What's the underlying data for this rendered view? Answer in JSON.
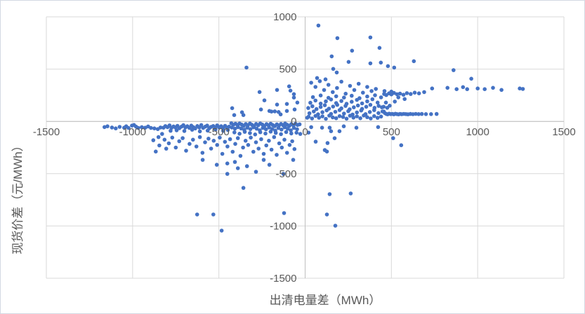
{
  "chart_title": "",
  "colors": {
    "marker": "#4472C4",
    "gridline": "#D9D9D9",
    "axis_line": "#BFBFBF",
    "text": "#595959",
    "background": "#FFFFFF"
  },
  "chart_data": {
    "type": "scatter",
    "title": "",
    "xlabel": "出清电量差（MWh）",
    "ylabel": "现货价差（元/MWh）",
    "xlim": [
      -1500,
      1500
    ],
    "ylim": [
      -1500,
      1000
    ],
    "x_ticks": [
      -1500,
      -1000,
      -500,
      0,
      500,
      1000,
      1500
    ],
    "y_ticks": [
      1000,
      500,
      0,
      -500,
      -1000,
      -1500
    ],
    "grid": true,
    "legend": false,
    "marker_color": "#4472C4",
    "points": [
      [
        -1163,
        -54
      ],
      [
        -1146,
        -47
      ],
      [
        -1120,
        -58
      ],
      [
        -1098,
        -67
      ],
      [
        -1075,
        -52
      ],
      [
        -1049,
        -60
      ],
      [
        -1037,
        -47
      ],
      [
        -1024,
        -62
      ],
      [
        -1004,
        -40
      ],
      [
        -992,
        -34
      ],
      [
        -980,
        -50
      ],
      [
        -967,
        -62
      ],
      [
        -947,
        -55
      ],
      [
        -927,
        -60
      ],
      [
        -910,
        -48
      ],
      [
        -894,
        -62
      ],
      [
        -874,
        -67
      ],
      [
        -854,
        -74
      ],
      [
        -838,
        -58
      ],
      [
        -829,
        -120
      ],
      [
        -821,
        -60
      ],
      [
        -810,
        -45
      ],
      [
        -798,
        -55
      ],
      [
        -786,
        -38
      ],
      [
        -775,
        -62
      ],
      [
        -763,
        -48
      ],
      [
        -752,
        -58
      ],
      [
        -740,
        -42
      ],
      [
        -729,
        -65
      ],
      [
        -717,
        -50
      ],
      [
        -706,
        -36
      ],
      [
        -694,
        -58
      ],
      [
        -683,
        -46
      ],
      [
        -671,
        -62
      ],
      [
        -660,
        -40
      ],
      [
        -648,
        -55
      ],
      [
        -637,
        -68
      ],
      [
        -625,
        -44
      ],
      [
        -614,
        -58
      ],
      [
        -602,
        -35
      ],
      [
        -591,
        -62
      ],
      [
        -579,
        -50
      ],
      [
        -568,
        -40
      ],
      [
        -556,
        -66
      ],
      [
        -545,
        -52
      ],
      [
        -533,
        -44
      ],
      [
        -522,
        -60
      ],
      [
        -510,
        -38
      ],
      [
        -499,
        -56
      ],
      [
        -487,
        -46
      ],
      [
        -476,
        -64
      ],
      [
        -464,
        -42
      ],
      [
        -453,
        -58
      ],
      [
        -441,
        -50
      ],
      [
        -780,
        -90
      ],
      [
        -745,
        -85
      ],
      [
        -700,
        -92
      ],
      [
        -655,
        -80
      ],
      [
        -610,
        -95
      ],
      [
        -565,
        -88
      ],
      [
        -520,
        -78
      ],
      [
        -475,
        -90
      ],
      [
        -448,
        -82
      ],
      [
        -805,
        -261
      ],
      [
        -866,
        -288
      ],
      [
        -428,
        -18
      ],
      [
        -416,
        -32
      ],
      [
        -404,
        -22
      ],
      [
        -392,
        -35
      ],
      [
        -380,
        -20
      ],
      [
        -368,
        -30
      ],
      [
        -356,
        -42
      ],
      [
        -344,
        -25
      ],
      [
        -332,
        -38
      ],
      [
        -320,
        -20
      ],
      [
        -308,
        -33
      ],
      [
        -296,
        -45
      ],
      [
        -284,
        -24
      ],
      [
        -272,
        -36
      ],
      [
        -260,
        -20
      ],
      [
        -248,
        -30
      ],
      [
        -236,
        -44
      ],
      [
        -224,
        -26
      ],
      [
        -212,
        -38
      ],
      [
        -200,
        -22
      ],
      [
        -188,
        -34
      ],
      [
        -176,
        -45
      ],
      [
        -164,
        -28
      ],
      [
        -152,
        -40
      ],
      [
        -140,
        -24
      ],
      [
        -128,
        -36
      ],
      [
        -116,
        -20
      ],
      [
        -104,
        -32
      ],
      [
        -92,
        -44
      ],
      [
        -80,
        -26
      ],
      [
        -68,
        -38
      ],
      [
        -56,
        -22
      ],
      [
        -44,
        -34
      ],
      [
        -32,
        -28
      ],
      [
        -425,
        -58
      ],
      [
        -407,
        -70
      ],
      [
        -389,
        -55
      ],
      [
        -371,
        -68
      ],
      [
        -353,
        -80
      ],
      [
        -335,
        -60
      ],
      [
        -317,
        -74
      ],
      [
        -299,
        -56
      ],
      [
        -281,
        -70
      ],
      [
        -263,
        -85
      ],
      [
        -245,
        -62
      ],
      [
        -227,
        -76
      ],
      [
        -209,
        -58
      ],
      [
        -191,
        -72
      ],
      [
        -173,
        -88
      ],
      [
        -155,
        -64
      ],
      [
        -137,
        -78
      ],
      [
        -119,
        -56
      ],
      [
        -101,
        -70
      ],
      [
        -83,
        -85
      ],
      [
        -65,
        -62
      ],
      [
        -47,
        -75
      ],
      [
        -410,
        -105
      ],
      [
        -380,
        -118
      ],
      [
        -350,
        -100
      ],
      [
        -320,
        -112
      ],
      [
        -290,
        -125
      ],
      [
        -260,
        -104
      ],
      [
        -230,
        -116
      ],
      [
        -200,
        -98
      ],
      [
        -170,
        -110
      ],
      [
        -140,
        -122
      ],
      [
        -110,
        -102
      ],
      [
        -80,
        -115
      ],
      [
        -50,
        -108
      ],
      [
        -28,
        -120
      ],
      [
        -880,
        -180
      ],
      [
        -850,
        -150
      ],
      [
        -845,
        -230
      ],
      [
        -815,
        -175
      ],
      [
        -790,
        -210
      ],
      [
        -770,
        -155
      ],
      [
        -750,
        -250
      ],
      [
        -730,
        -190
      ],
      [
        -710,
        -160
      ],
      [
        -690,
        -280
      ],
      [
        -670,
        -215
      ],
      [
        -650,
        -175
      ],
      [
        -630,
        -240
      ],
      [
        -610,
        -150
      ],
      [
        -595,
        -300
      ],
      [
        -580,
        -200
      ],
      [
        -560,
        -165
      ],
      [
        -545,
        -260
      ],
      [
        -530,
        -185
      ],
      [
        -510,
        -225
      ],
      [
        -495,
        -155
      ],
      [
        -480,
        -310
      ],
      [
        -465,
        -195
      ],
      [
        -450,
        -240
      ],
      [
        -435,
        -170
      ],
      [
        -420,
        -290
      ],
      [
        -405,
        -215
      ],
      [
        -390,
        -160
      ],
      [
        -375,
        -330
      ],
      [
        -360,
        -250
      ],
      [
        -345,
        -185
      ],
      [
        -330,
        -225
      ],
      [
        -315,
        -155
      ],
      [
        -300,
        -290
      ],
      [
        -285,
        -200
      ],
      [
        -270,
        -260
      ],
      [
        -255,
        -170
      ],
      [
        -240,
        -310
      ],
      [
        -225,
        -230
      ],
      [
        -210,
        -185
      ],
      [
        -195,
        -270
      ],
      [
        -180,
        -150
      ],
      [
        -165,
        -320
      ],
      [
        -150,
        -210
      ],
      [
        -135,
        -250
      ],
      [
        -120,
        -175
      ],
      [
        -105,
        -300
      ],
      [
        -90,
        -225
      ],
      [
        -75,
        -190
      ],
      [
        -62,
        -265
      ],
      [
        -594,
        -368
      ],
      [
        -512,
        -415
      ],
      [
        -451,
        -402
      ],
      [
        -407,
        -388
      ],
      [
        -390,
        -448
      ],
      [
        -337,
        -428
      ],
      [
        -285,
        -482
      ],
      [
        -240,
        -368
      ],
      [
        -207,
        -415
      ],
      [
        -126,
        -502
      ],
      [
        -451,
        -502
      ],
      [
        -358,
        -636
      ],
      [
        -69,
        -368
      ],
      [
        -626,
        -890
      ],
      [
        -532,
        -890
      ],
      [
        -484,
        -1044
      ],
      [
        -122,
        -877
      ],
      [
        -340,
        515
      ],
      [
        -423,
        127
      ],
      [
        -411,
        60
      ],
      [
        -366,
        87
      ],
      [
        -358,
        60
      ],
      [
        -264,
        281
      ],
      [
        -236,
        201
      ],
      [
        -256,
        114
      ],
      [
        -207,
        100
      ],
      [
        -195,
        94
      ],
      [
        -176,
        96
      ],
      [
        -163,
        161
      ],
      [
        -154,
        90
      ],
      [
        -142,
        67
      ],
      [
        -163,
        301
      ],
      [
        -106,
        167
      ],
      [
        -106,
        100
      ],
      [
        -93,
        335
      ],
      [
        -85,
        294
      ],
      [
        -65,
        261
      ],
      [
        -65,
        228
      ],
      [
        -61,
        114
      ],
      [
        -45,
        180
      ],
      [
        20,
        45
      ],
      [
        40,
        28
      ],
      [
        60,
        52
      ],
      [
        80,
        35
      ],
      [
        100,
        48
      ],
      [
        120,
        25
      ],
      [
        140,
        55
      ],
      [
        160,
        38
      ],
      [
        180,
        30
      ],
      [
        200,
        50
      ],
      [
        220,
        42
      ],
      [
        240,
        26
      ],
      [
        260,
        54
      ],
      [
        280,
        36
      ],
      [
        300,
        48
      ],
      [
        320,
        30
      ],
      [
        340,
        56
      ],
      [
        360,
        40
      ],
      [
        380,
        28
      ],
      [
        400,
        50
      ],
      [
        420,
        34
      ],
      [
        440,
        46
      ],
      [
        25,
        78
      ],
      [
        50,
        95
      ],
      [
        75,
        68
      ],
      [
        100,
        88
      ],
      [
        125,
        105
      ],
      [
        150,
        72
      ],
      [
        175,
        92
      ],
      [
        200,
        108
      ],
      [
        225,
        75
      ],
      [
        250,
        98
      ],
      [
        275,
        66
      ],
      [
        300,
        86
      ],
      [
        325,
        104
      ],
      [
        350,
        70
      ],
      [
        375,
        90
      ],
      [
        400,
        108
      ],
      [
        425,
        80
      ],
      [
        448,
        95
      ],
      [
        18,
        128
      ],
      [
        42,
        145
      ],
      [
        66,
        118
      ],
      [
        90,
        138
      ],
      [
        114,
        155
      ],
      [
        138,
        122
      ],
      [
        162,
        142
      ],
      [
        186,
        158
      ],
      [
        210,
        125
      ],
      [
        234,
        148
      ],
      [
        258,
        116
      ],
      [
        282,
        135
      ],
      [
        306,
        152
      ],
      [
        330,
        120
      ],
      [
        354,
        140
      ],
      [
        378,
        158
      ],
      [
        402,
        130
      ],
      [
        426,
        148
      ],
      [
        445,
        135
      ],
      [
        30,
        178
      ],
      [
        60,
        200
      ],
      [
        90,
        170
      ],
      [
        120,
        192
      ],
      [
        150,
        210
      ],
      [
        180,
        175
      ],
      [
        210,
        195
      ],
      [
        240,
        168
      ],
      [
        270,
        188
      ],
      [
        300,
        206
      ],
      [
        330,
        172
      ],
      [
        360,
        192
      ],
      [
        390,
        212
      ],
      [
        420,
        180
      ],
      [
        45,
        232
      ],
      [
        90,
        248
      ],
      [
        135,
        225
      ],
      [
        180,
        240
      ],
      [
        225,
        228
      ],
      [
        270,
        245
      ],
      [
        315,
        222
      ],
      [
        360,
        238
      ],
      [
        405,
        250
      ],
      [
        440,
        230
      ],
      [
        12,
        35
      ],
      [
        455,
        140
      ],
      [
        35,
        370
      ],
      [
        60,
        330
      ],
      [
        85,
        385
      ],
      [
        110,
        300
      ],
      [
        135,
        350
      ],
      [
        160,
        280
      ],
      [
        185,
        320
      ],
      [
        210,
        380
      ],
      [
        235,
        265
      ],
      [
        260,
        340
      ],
      [
        285,
        300
      ],
      [
        310,
        360
      ],
      [
        335,
        275
      ],
      [
        360,
        330
      ],
      [
        385,
        290
      ],
      [
        410,
        310
      ],
      [
        460,
        290
      ],
      [
        500,
        285
      ],
      [
        77,
        917
      ],
      [
        187,
        796
      ],
      [
        378,
        803
      ],
      [
        272,
        676
      ],
      [
        431,
        703
      ],
      [
        154,
        622
      ],
      [
        252,
        569
      ],
      [
        378,
        555
      ],
      [
        439,
        562
      ],
      [
        480,
        529
      ],
      [
        163,
        502
      ],
      [
        183,
        468
      ],
      [
        516,
        515
      ],
      [
        69,
        415
      ],
      [
        118,
        402
      ],
      [
        630,
        576
      ],
      [
        860,
        490
      ],
      [
        963,
        408
      ],
      [
        455,
        95
      ],
      [
        462,
        80
      ],
      [
        470,
        72
      ],
      [
        478,
        68
      ],
      [
        487,
        74
      ],
      [
        496,
        70
      ],
      [
        505,
        72
      ],
      [
        514,
        68
      ],
      [
        523,
        73
      ],
      [
        532,
        70
      ],
      [
        541,
        67
      ],
      [
        550,
        71
      ],
      [
        560,
        69
      ],
      [
        572,
        72
      ],
      [
        584,
        70
      ],
      [
        596,
        68
      ],
      [
        610,
        71
      ],
      [
        625,
        69
      ],
      [
        641,
        72
      ],
      [
        658,
        70
      ],
      [
        676,
        71
      ],
      [
        700,
        70
      ],
      [
        730,
        70
      ],
      [
        762,
        71
      ],
      [
        458,
        262
      ],
      [
        470,
        252
      ],
      [
        486,
        268
      ],
      [
        500,
        258
      ],
      [
        515,
        272
      ],
      [
        532,
        260
      ],
      [
        550,
        266
      ],
      [
        570,
        255
      ],
      [
        590,
        270
      ],
      [
        612,
        262
      ],
      [
        635,
        275
      ],
      [
        660,
        268
      ],
      [
        690,
        280
      ],
      [
        736,
        315
      ],
      [
        825,
        321
      ],
      [
        878,
        308
      ],
      [
        915,
        328
      ],
      [
        939,
        308
      ],
      [
        1000,
        315
      ],
      [
        1041,
        308
      ],
      [
        1089,
        321
      ],
      [
        1138,
        301
      ],
      [
        1244,
        315
      ],
      [
        1262,
        310
      ],
      [
        468,
        180
      ],
      [
        490,
        150
      ],
      [
        520,
        190
      ],
      [
        476,
        130
      ],
      [
        540,
        230
      ],
      [
        577,
        214
      ],
      [
        20,
        -107
      ],
      [
        35,
        -55
      ],
      [
        61,
        -194
      ],
      [
        98,
        -60
      ],
      [
        114,
        -274
      ],
      [
        126,
        -288
      ],
      [
        130,
        -207
      ],
      [
        142,
        -60
      ],
      [
        150,
        -94
      ],
      [
        171,
        -161
      ],
      [
        199,
        -94
      ],
      [
        224,
        -47
      ],
      [
        297,
        -60
      ],
      [
        423,
        -54
      ],
      [
        510,
        -160
      ],
      [
        557,
        -228
      ],
      [
        142,
        -696
      ],
      [
        264,
        -689
      ],
      [
        126,
        -890
      ],
      [
        175,
        -997
      ]
    ]
  }
}
